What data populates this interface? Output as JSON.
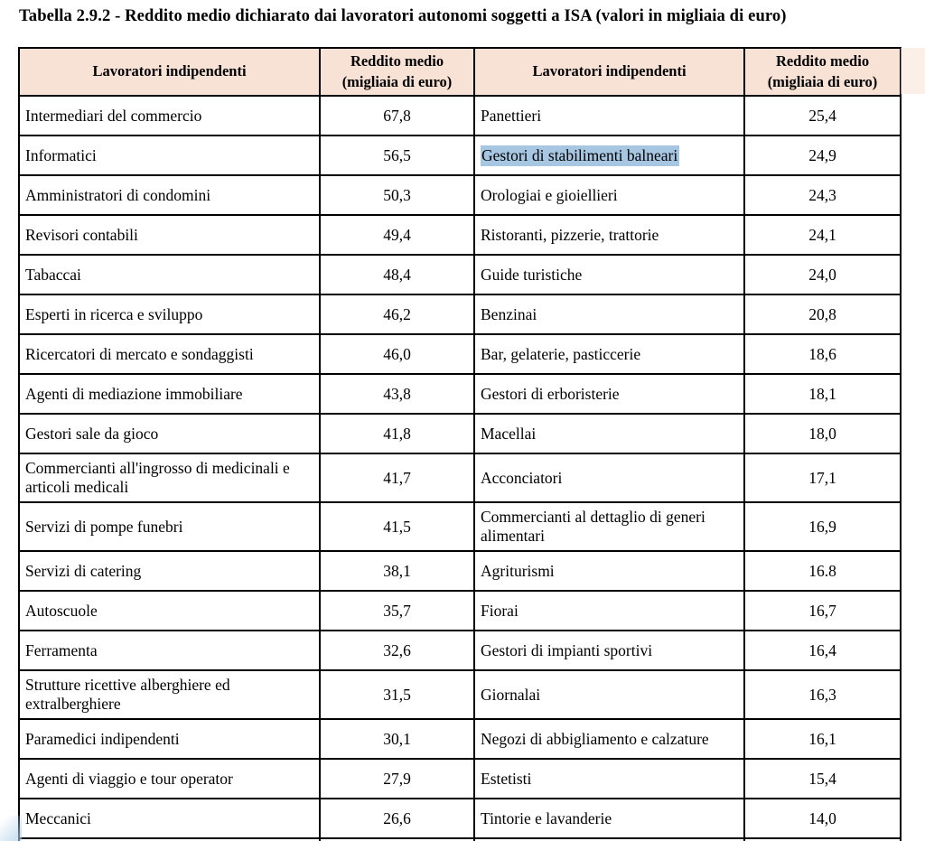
{
  "title": "Tabella 2.9.2 - Reddito medio dichiarato dai lavoratori autonomi soggetti a ISA (valori in migliaia di euro)",
  "colors": {
    "header_bg": "#f8e1d5",
    "selection_highlight": "#a6c6e2",
    "border": "#000000"
  },
  "table": {
    "headers": {
      "col1": "Lavoratori indipendenti",
      "col2": "Reddito medio (migliaia di euro)",
      "col3": "Lavoratori indipendenti",
      "col4": "Reddito medio (migliaia di euro)"
    },
    "rows": [
      {
        "left_label": "Intermediari del commercio",
        "left_value": "67,8",
        "right_label": "Panettieri",
        "right_value": "25,4",
        "tall": false,
        "right_highlight": false
      },
      {
        "left_label": "Informatici",
        "left_value": "56,5",
        "right_label": "Gestori di stabilimenti balneari",
        "right_value": "24,9",
        "tall": false,
        "right_highlight": true
      },
      {
        "left_label": "Amministratori di condomini",
        "left_value": "50,3",
        "right_label": "Orologiai e gioiellieri",
        "right_value": "24,3",
        "tall": false,
        "right_highlight": false
      },
      {
        "left_label": "Revisori contabili",
        "left_value": "49,4",
        "right_label": "Ristoranti, pizzerie, trattorie",
        "right_value": "24,1",
        "tall": false,
        "right_highlight": false
      },
      {
        "left_label": "Tabaccai",
        "left_value": "48,4",
        "right_label": "Guide turistiche",
        "right_value": "24,0",
        "tall": false,
        "right_highlight": false
      },
      {
        "left_label": "Esperti in ricerca e sviluppo",
        "left_value": "46,2",
        "right_label": "Benzinai",
        "right_value": "20,8",
        "tall": false,
        "right_highlight": false
      },
      {
        "left_label": "Ricercatori di mercato e sondaggisti",
        "left_value": "46,0",
        "right_label": "Bar, gelaterie, pasticcerie",
        "right_value": "18,6",
        "tall": false,
        "right_highlight": false
      },
      {
        "left_label": "Agenti di mediazione immobiliare",
        "left_value": "43,8",
        "right_label": "Gestori di erboristerie",
        "right_value": "18,1",
        "tall": false,
        "right_highlight": false
      },
      {
        "left_label": "Gestori sale da gioco",
        "left_value": "41,8",
        "right_label": "Macellai",
        "right_value": "18,0",
        "tall": false,
        "right_highlight": false
      },
      {
        "left_label": "Commercianti all'ingrosso di medicinali e articoli medicali",
        "left_value": "41,7",
        "right_label": "Acconciatori",
        "right_value": "17,1",
        "tall": true,
        "right_highlight": false
      },
      {
        "left_label": "Servizi di pompe funebri",
        "left_value": "41,5",
        "right_label": "Commercianti al dettaglio di generi alimentari",
        "right_value": "16,9",
        "tall": true,
        "right_highlight": false
      },
      {
        "left_label": "Servizi di catering",
        "left_value": "38,1",
        "right_label": "Agriturismi",
        "right_value": "16.8",
        "tall": false,
        "right_highlight": false
      },
      {
        "left_label": "Autoscuole",
        "left_value": "35,7",
        "right_label": "Fiorai",
        "right_value": "16,7",
        "tall": false,
        "right_highlight": false
      },
      {
        "left_label": "Ferramenta",
        "left_value": "32,6",
        "right_label": "Gestori di impianti sportivi",
        "right_value": "16,4",
        "tall": false,
        "right_highlight": false
      },
      {
        "left_label": "Strutture ricettive alberghiere ed extralberghiere",
        "left_value": "31,5",
        "right_label": "Giornalai",
        "right_value": "16,3",
        "tall": true,
        "right_highlight": false
      },
      {
        "left_label": "Paramedici indipendenti",
        "left_value": "30,1",
        "right_label": "Negozi di abbigliamento e calzature",
        "right_value": "16,1",
        "tall": false,
        "right_highlight": false
      },
      {
        "left_label": "Agenti di viaggio e tour operator",
        "left_value": "27,9",
        "right_label": "Estetisti",
        "right_value": "15,4",
        "tall": false,
        "right_highlight": false
      },
      {
        "left_label": "Meccanici",
        "left_value": "26,6",
        "right_label": "Tintorie e lavanderie",
        "right_value": "14,0",
        "tall": false,
        "right_highlight": false
      }
    ]
  }
}
